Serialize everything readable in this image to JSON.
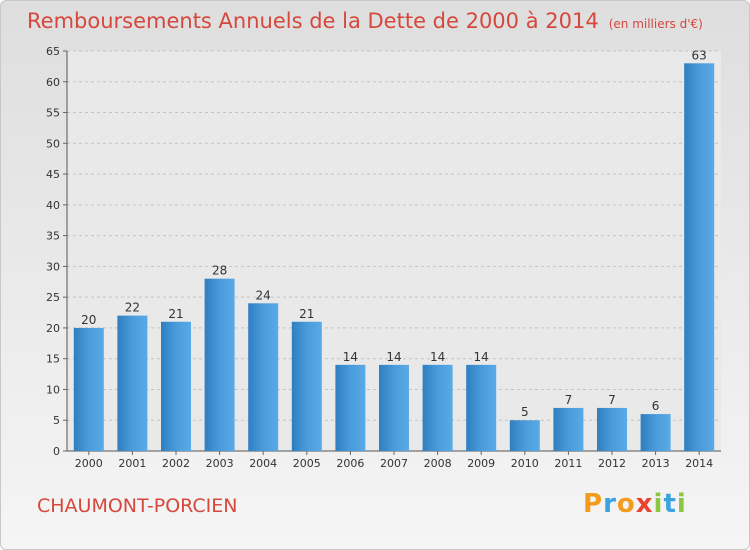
{
  "title": "Remboursements Annuels de la Dette de 2000 à 2014",
  "subtitle": "(en milliers d'€)",
  "town": "CHAUMONT-PORCIEN",
  "logo": {
    "letters": [
      "P",
      "r",
      "o",
      "x",
      "i",
      "t",
      "i"
    ],
    "colors": [
      "#f29b1d",
      "#3aa3e0",
      "#f29b1d",
      "#e8432f",
      "#8dc63f",
      "#3aa3e0",
      "#8dc63f"
    ]
  },
  "chart_data": {
    "type": "bar",
    "categories": [
      "2000",
      "2001",
      "2002",
      "2003",
      "2004",
      "2005",
      "2006",
      "2007",
      "2008",
      "2009",
      "2010",
      "2011",
      "2012",
      "2013",
      "2014"
    ],
    "values": [
      20,
      22,
      21,
      28,
      24,
      21,
      14,
      14,
      14,
      14,
      5,
      7,
      7,
      6,
      63
    ],
    "ylim": [
      0,
      65
    ],
    "yticks": [
      0,
      5,
      10,
      15,
      20,
      25,
      30,
      35,
      40,
      45,
      50,
      55,
      60,
      65
    ],
    "grid": true,
    "bar_color": "#4a9bdb",
    "text_color": "#d6473c"
  }
}
